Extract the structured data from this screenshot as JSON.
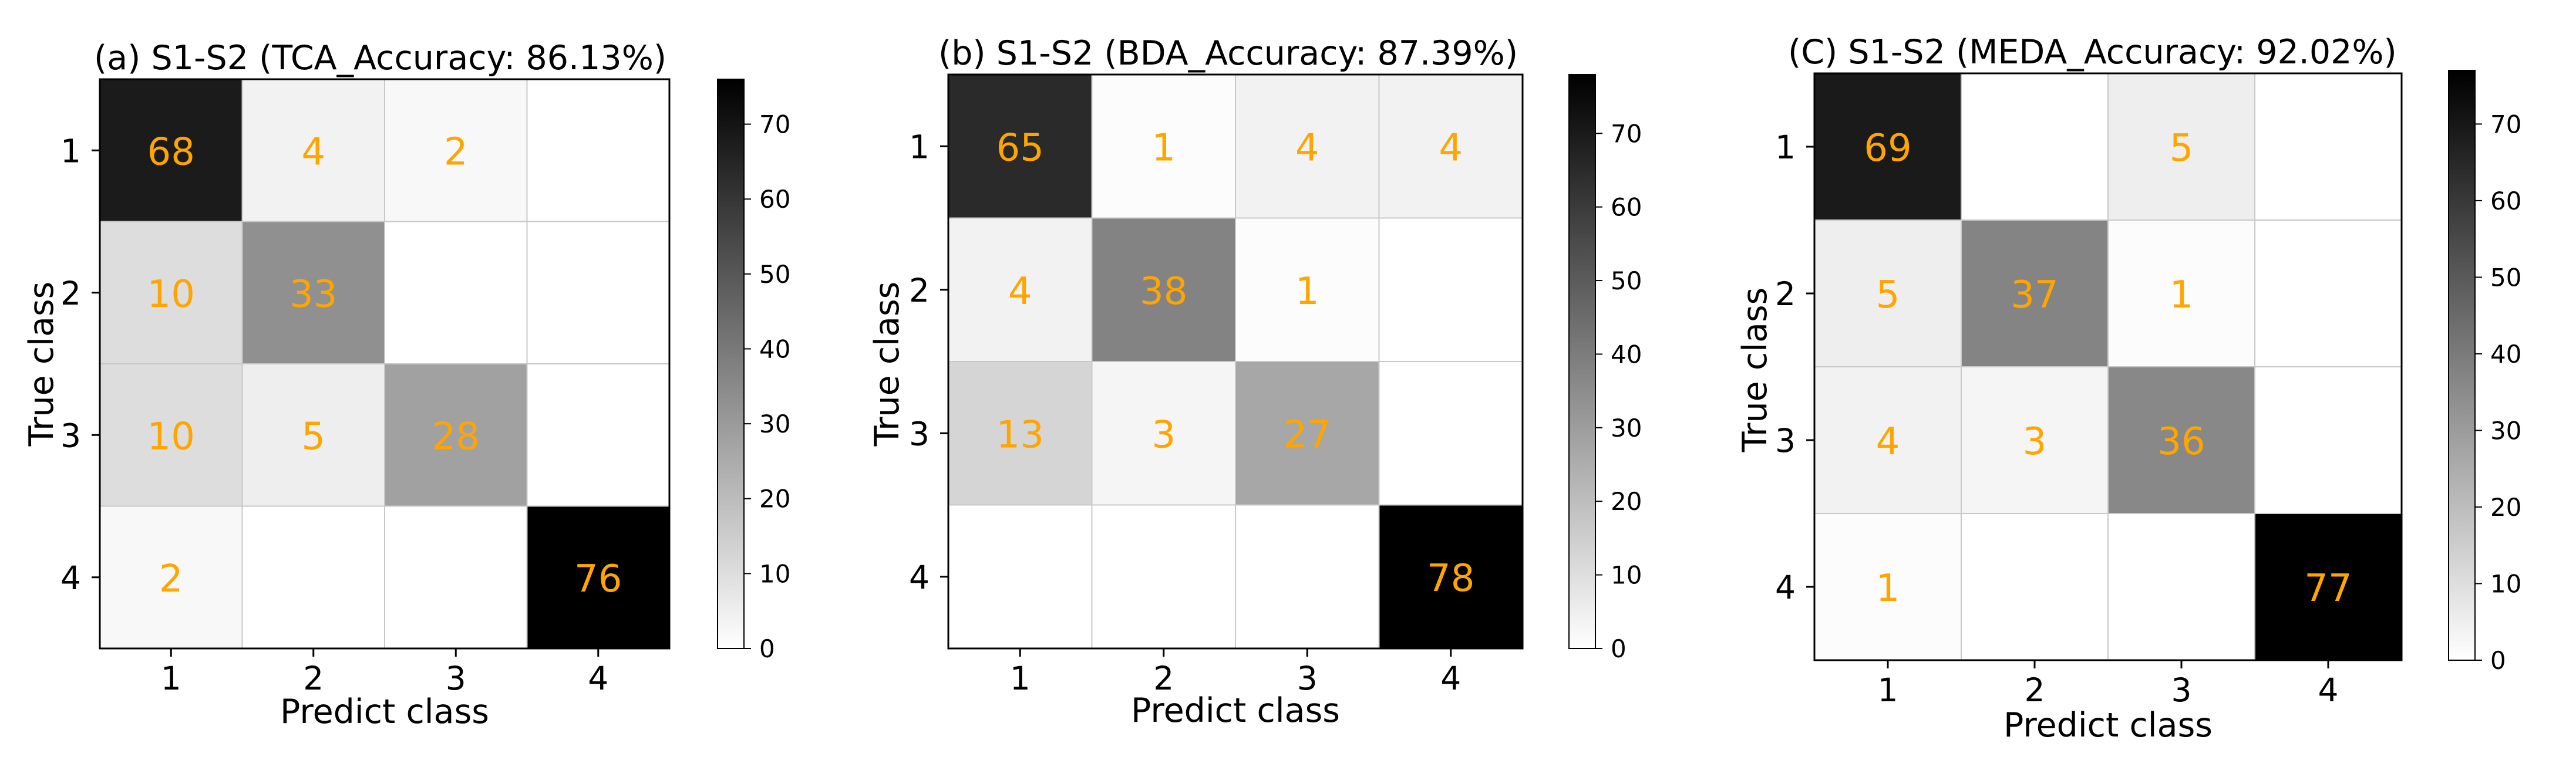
{
  "chart_data": [
    {
      "type": "heatmap",
      "title": "(a) S1-S2 (TCA_Accuracy: 86.13%)",
      "xlabel": "Predict class",
      "ylabel": "True class",
      "x_tick_labels": [
        "1",
        "2",
        "3",
        "4"
      ],
      "y_tick_labels": [
        "1",
        "2",
        "3",
        "4"
      ],
      "matrix": [
        [
          68,
          4,
          2,
          0
        ],
        [
          10,
          33,
          0,
          0
        ],
        [
          10,
          5,
          28,
          0
        ],
        [
          2,
          0,
          0,
          76
        ]
      ],
      "colorbar": {
        "range": [
          0,
          76
        ],
        "ticks": [
          "0",
          "10",
          "20",
          "30",
          "40",
          "50",
          "60",
          "70"
        ]
      }
    },
    {
      "type": "heatmap",
      "title": "(b) S1-S2 (BDA_Accuracy: 87.39%)",
      "xlabel": "Predict class",
      "ylabel": "True class",
      "x_tick_labels": [
        "1",
        "2",
        "3",
        "4"
      ],
      "y_tick_labels": [
        "1",
        "2",
        "3",
        "4"
      ],
      "matrix": [
        [
          65,
          1,
          4,
          4
        ],
        [
          4,
          38,
          1,
          0
        ],
        [
          13,
          3,
          27,
          0
        ],
        [
          0,
          0,
          0,
          78
        ]
      ],
      "colorbar": {
        "range": [
          0,
          78
        ],
        "ticks": [
          "0",
          "10",
          "20",
          "30",
          "40",
          "50",
          "60",
          "70"
        ]
      }
    },
    {
      "type": "heatmap",
      "title": "(C) S1-S2 (MEDA_Accuracy: 92.02%)",
      "xlabel": "Predict class",
      "ylabel": "True class",
      "x_tick_labels": [
        "1",
        "2",
        "3",
        "4"
      ],
      "y_tick_labels": [
        "1",
        "2",
        "3",
        "4"
      ],
      "matrix": [
        [
          69,
          0,
          5,
          0
        ],
        [
          5,
          37,
          1,
          0
        ],
        [
          4,
          3,
          36,
          0
        ],
        [
          1,
          0,
          0,
          77
        ]
      ],
      "colorbar": {
        "range": [
          0,
          77
        ],
        "ticks": [
          "0",
          "10",
          "20",
          "30",
          "40",
          "50",
          "60",
          "70"
        ]
      }
    }
  ],
  "colors": {
    "annotation": "#FFA500",
    "cell_low": "#ffffff",
    "cell_high": "#000000",
    "grid_line": "#c8c8c8",
    "axis": "#000000"
  }
}
